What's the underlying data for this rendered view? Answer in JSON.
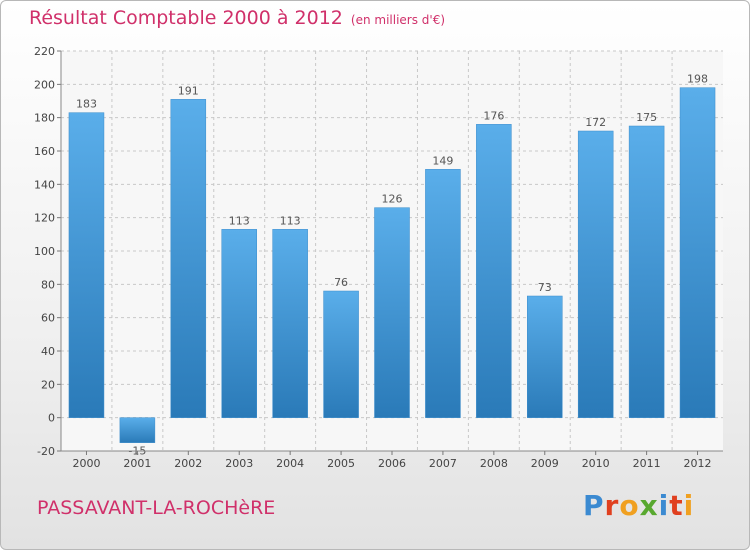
{
  "title": "Résultat Comptable 2000 à 2012",
  "subtitle": "(en milliers d'€)",
  "location": "PASSAVANT-LA-ROCHèRE",
  "logo": {
    "text": "Proxiti",
    "letters": [
      "P",
      "r",
      "o",
      "x",
      "i",
      "t",
      "i"
    ],
    "colors": [
      "#3b8ad1",
      "#e0401f",
      "#f0a020",
      "#58a82f",
      "#3b8ad1",
      "#e0401f",
      "#f0a020"
    ]
  },
  "colors": {
    "bar_top": "#5aaeea",
    "bar_bottom": "#2a7ab8",
    "title": "#d0306a",
    "grid": "#c8c8c8"
  },
  "chart_data": {
    "type": "bar",
    "categories": [
      "2000",
      "2001",
      "2002",
      "2003",
      "2004",
      "2005",
      "2006",
      "2007",
      "2008",
      "2009",
      "2010",
      "2011",
      "2012"
    ],
    "values": [
      183,
      -15,
      191,
      113,
      113,
      76,
      126,
      149,
      176,
      73,
      172,
      175,
      198
    ],
    "data_labels": [
      "183",
      "-15",
      "191",
      "113",
      "113",
      "76",
      "126",
      "149",
      "176",
      "73",
      "172",
      "175",
      "198"
    ],
    "yticks": [
      -20,
      0,
      20,
      40,
      60,
      80,
      100,
      120,
      140,
      160,
      180,
      200,
      220
    ],
    "ylim": [
      -20,
      220
    ],
    "grid": true,
    "xlabel": "",
    "ylabel": ""
  }
}
